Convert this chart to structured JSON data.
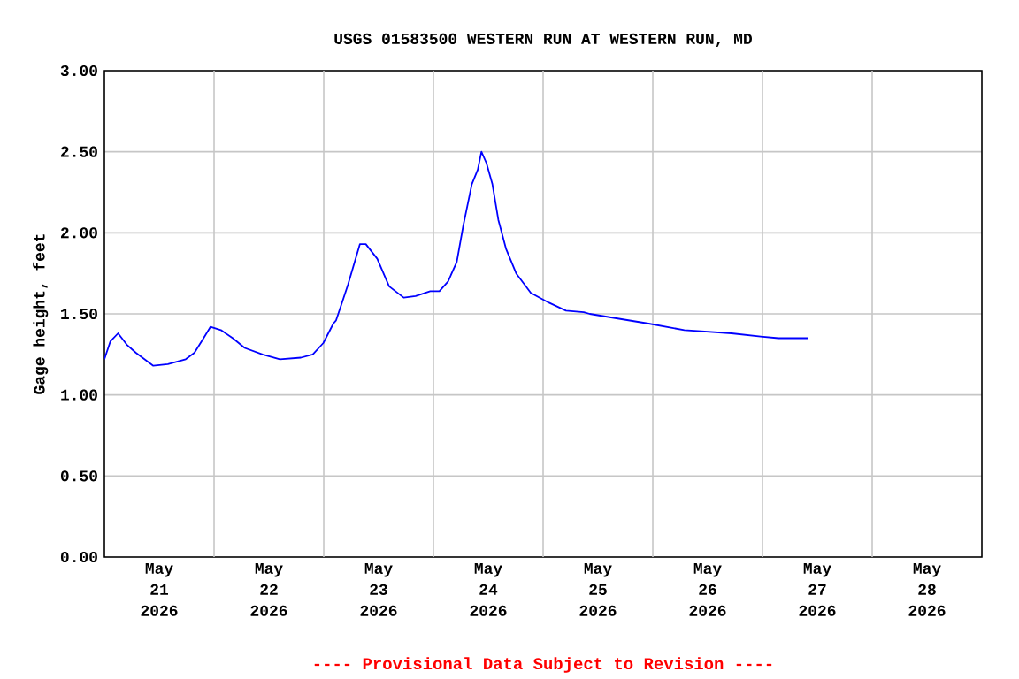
{
  "chart_data": {
    "type": "line",
    "title": "USGS 01583500 WESTERN RUN AT WESTERN RUN, MD",
    "ylabel": "Gage height, feet",
    "annotations": [
      "---- Provisional Data Subject to Revision ----"
    ],
    "x": [
      "2026-05-21T00:00",
      "2026-05-21T01:18",
      "2026-05-21T03:00",
      "2026-05-21T04:54",
      "2026-05-21T06:54",
      "2026-05-21T10:42",
      "2026-05-21T13:54",
      "2026-05-21T17:48",
      "2026-05-21T19:42",
      "2026-05-21T21:42",
      "2026-05-21T23:12",
      "2026-05-22T01:30",
      "2026-05-22T04:06",
      "2026-05-22T06:42",
      "2026-05-22T10:36",
      "2026-05-22T14:24",
      "2026-05-22T19:00",
      "2026-05-22T21:36",
      "2026-05-22T23:54",
      "2026-05-23T02:06",
      "2026-05-23T02:42",
      "2026-05-23T04:00",
      "2026-05-23T05:18",
      "2026-05-23T07:54",
      "2026-05-23T09:12",
      "2026-05-23T11:42",
      "2026-05-23T14:18",
      "2026-05-23T17:30",
      "2026-05-23T20:06",
      "2026-05-23T23:18",
      "2026-05-24T01:18",
      "2026-05-24T03:12",
      "2026-05-24T05:06",
      "2026-05-24T06:30",
      "2026-05-24T08:24",
      "2026-05-24T09:42",
      "2026-05-24T10:30",
      "2026-05-24T11:36",
      "2026-05-24T12:54",
      "2026-05-24T14:12",
      "2026-05-24T15:54",
      "2026-05-24T18:06",
      "2026-05-24T21:18",
      "2026-05-25T01:12",
      "2026-05-25T05:00",
      "2026-05-25T08:54",
      "2026-05-25T10:12",
      "2026-05-25T16:36",
      "2026-05-25T23:06",
      "2026-05-26T06:54",
      "2026-05-26T17:12",
      "2026-05-26T23:36",
      "2026-05-27T03:30",
      "2026-05-27T09:54"
    ],
    "series": [
      {
        "color": "#0000ff",
        "values": [
          1.22,
          1.33,
          1.38,
          1.31,
          1.26,
          1.18,
          1.19,
          1.22,
          1.26,
          1.35,
          1.42,
          1.4,
          1.35,
          1.29,
          1.25,
          1.22,
          1.23,
          1.25,
          1.32,
          1.44,
          1.46,
          1.57,
          1.68,
          1.93,
          1.93,
          1.84,
          1.67,
          1.6,
          1.61,
          1.64,
          1.64,
          1.7,
          1.82,
          2.04,
          2.3,
          2.39,
          2.5,
          2.43,
          2.3,
          2.08,
          1.9,
          1.75,
          1.63,
          1.57,
          1.52,
          1.51,
          1.5,
          1.47,
          1.44,
          1.4,
          1.38,
          1.36,
          1.35,
          1.35
        ]
      }
    ],
    "xlim": [
      "2026-05-21T00:00",
      "2026-05-29T00:00"
    ],
    "xticks": [
      {
        "value": "2026-05-21T12:00",
        "label": "May 21 2026"
      },
      {
        "value": "2026-05-22T12:00",
        "label": "May 22 2026"
      },
      {
        "value": "2026-05-23T12:00",
        "label": "May 23 2026"
      },
      {
        "value": "2026-05-24T12:00",
        "label": "May 24 2026"
      },
      {
        "value": "2026-05-25T12:00",
        "label": "May 25 2026"
      },
      {
        "value": "2026-05-26T12:00",
        "label": "May 26 2026"
      },
      {
        "value": "2026-05-27T12:00",
        "label": "May 27 2026"
      },
      {
        "value": "2026-05-28T12:00",
        "label": "May 28 2026"
      },
      {
        "value": "2026-05-22T00:00",
        "label": null
      },
      {
        "value": "2026-05-23T00:00",
        "label": null
      },
      {
        "value": "2026-05-24T00:00",
        "label": null
      },
      {
        "value": "2026-05-25T00:00",
        "label": null
      },
      {
        "value": "2026-05-26T00:00",
        "label": null
      },
      {
        "value": "2026-05-27T00:00",
        "label": null
      },
      {
        "value": "2026-05-28T00:00",
        "label": null
      }
    ],
    "ylim": [
      0,
      3
    ],
    "yticks": [
      {
        "value": 0,
        "label": "0.00"
      },
      {
        "value": 0.5,
        "label": "0.50"
      },
      {
        "value": 1,
        "label": "1.00"
      },
      {
        "value": 1.5,
        "label": "1.50"
      },
      {
        "value": 2,
        "label": "2.00"
      },
      {
        "value": 2.5,
        "label": "2.50"
      },
      {
        "value": 3,
        "label": "3.00"
      }
    ],
    "grid": true,
    "marker": "none",
    "line_style": "solid"
  }
}
